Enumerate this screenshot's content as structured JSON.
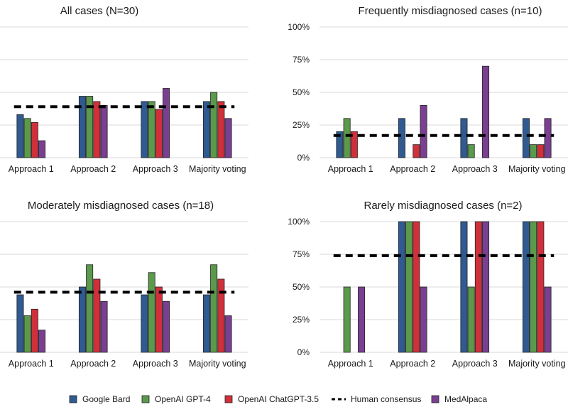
{
  "colors": {
    "google_bard": "#2f5a92",
    "openai_gpt4": "#5a9a4a",
    "openai_chatgpt35": "#d0303a",
    "medalpaca": "#7a3f90",
    "human_consensus": "#000000",
    "grid": "#d9d9d9",
    "bar_edge": "#222222"
  },
  "legend": {
    "google_bard": "Google Bard",
    "openai_gpt4": "OpenAI GPT-4",
    "openai_chatgpt35": "OpenAI ChatGPT-3.5",
    "human_consensus": "Human consensus",
    "medalpaca": "MedAlpaca"
  },
  "chart_data": [
    {
      "type": "bar",
      "title": "All cases (N=30)",
      "categories": [
        "Approach 1",
        "Approach 2",
        "Approach 3",
        "Majority voting"
      ],
      "ylim": [
        0,
        100
      ],
      "yticks": [
        "0%",
        "25%",
        "50%",
        "75%",
        "100%"
      ],
      "show_ytick_labels": false,
      "series": [
        {
          "name": "Google Bard",
          "values": [
            33,
            47,
            43,
            43
          ]
        },
        {
          "name": "OpenAI GPT-4",
          "values": [
            30,
            47,
            43,
            50
          ]
        },
        {
          "name": "OpenAI ChatGPT-3.5",
          "values": [
            27,
            43,
            37,
            43
          ]
        },
        {
          "name": "MedAlpaca",
          "values": [
            13,
            40,
            53,
            30
          ]
        }
      ],
      "human_consensus": 39
    },
    {
      "type": "bar",
      "title": "Frequently misdiagnosed cases (n=10)",
      "categories": [
        "Approach 1",
        "Approach 2",
        "Approach 3",
        "Majority voting"
      ],
      "ylim": [
        0,
        100
      ],
      "yticks": [
        "0%",
        "25%",
        "50%",
        "75%",
        "100%"
      ],
      "show_ytick_labels": true,
      "series": [
        {
          "name": "Google Bard",
          "values": [
            20,
            30,
            30,
            30
          ]
        },
        {
          "name": "OpenAI GPT-4",
          "values": [
            30,
            0,
            10,
            10
          ]
        },
        {
          "name": "OpenAI ChatGPT-3.5",
          "values": [
            20,
            10,
            0,
            10
          ]
        },
        {
          "name": "MedAlpaca",
          "values": [
            0,
            40,
            70,
            30
          ]
        }
      ],
      "human_consensus": 17
    },
    {
      "type": "bar",
      "title": "Moderately misdiagnosed cases (n=18)",
      "categories": [
        "Approach 1",
        "Approach 2",
        "Approach 3",
        "Majority voting"
      ],
      "ylim": [
        0,
        100
      ],
      "yticks": [
        "0%",
        "25%",
        "50%",
        "75%",
        "100%"
      ],
      "show_ytick_labels": false,
      "series": [
        {
          "name": "Google Bard",
          "values": [
            44,
            50,
            44,
            44
          ]
        },
        {
          "name": "OpenAI GPT-4",
          "values": [
            28,
            67,
            61,
            67
          ]
        },
        {
          "name": "OpenAI ChatGPT-3.5",
          "values": [
            33,
            56,
            50,
            56
          ]
        },
        {
          "name": "MedAlpaca",
          "values": [
            17,
            39,
            39,
            28
          ]
        }
      ],
      "human_consensus": 46
    },
    {
      "type": "bar",
      "title": "Rarely misdiagnosed cases (n=2)",
      "categories": [
        "Approach 1",
        "Approach 2",
        "Approach 3",
        "Majority voting"
      ],
      "ylim": [
        0,
        100
      ],
      "yticks": [
        "0%",
        "25%",
        "50%",
        "75%",
        "100%"
      ],
      "show_ytick_labels": true,
      "series": [
        {
          "name": "Google Bard",
          "values": [
            0,
            100,
            100,
            100
          ]
        },
        {
          "name": "OpenAI GPT-4",
          "values": [
            50,
            100,
            50,
            100
          ]
        },
        {
          "name": "OpenAI ChatGPT-3.5",
          "values": [
            0,
            100,
            100,
            100
          ]
        },
        {
          "name": "MedAlpaca",
          "values": [
            50,
            50,
            100,
            50
          ]
        }
      ],
      "human_consensus": 74
    }
  ]
}
